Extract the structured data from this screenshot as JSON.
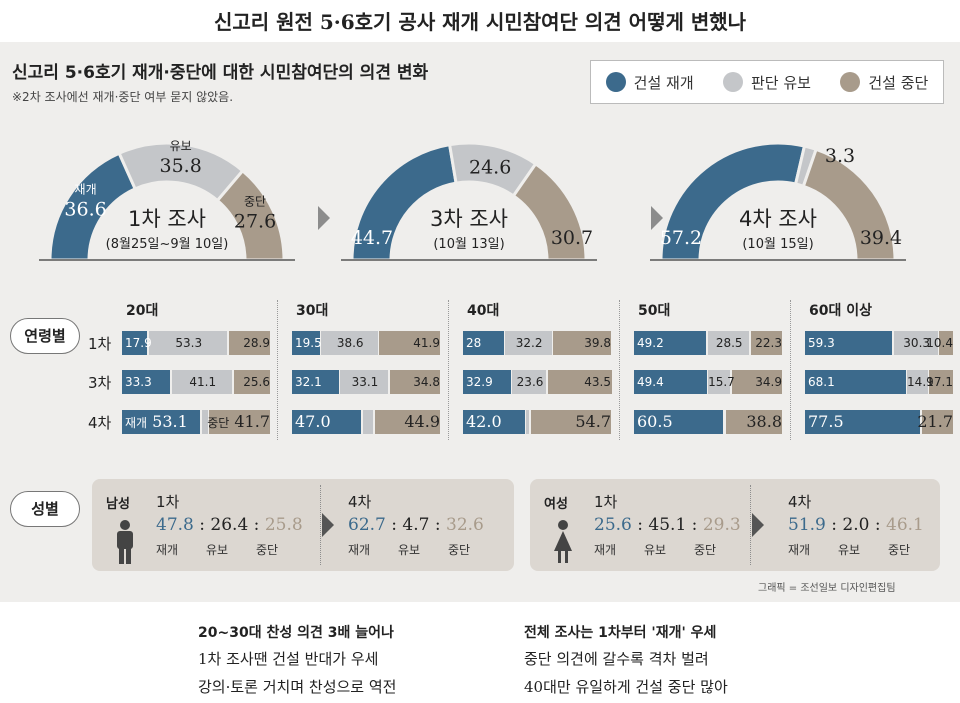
{
  "top_title": "신고리 원전 5·6호기 공사 재개  시민참여단 의견 어떻게 변했나",
  "panel_title": "신고리 5·6호기 재개·중단에 대한 시민참여단의 의견 변화",
  "panel_note": "※2차 조사에선 재개·중단 여부 묻지 않았음.",
  "colors": {
    "resume": "#3c6a8c",
    "pending": "#c4c6c9",
    "stop": "#a89b8b"
  },
  "legend": [
    "건설 재개",
    "판단 유보",
    "건설 중단"
  ],
  "section_labels": {
    "age": "연령별",
    "gender": "성별"
  },
  "chart_data": [
    {
      "type": "pie",
      "title": "1차 조사",
      "subtitle": "(8월25일~9월 10일)",
      "categories": [
        "재개",
        "유보",
        "중단"
      ],
      "values": [
        36.6,
        35.8,
        27.6
      ],
      "display": [
        "36.6",
        "35.8",
        "27.6"
      ]
    },
    {
      "type": "pie",
      "title": "3차 조사",
      "subtitle": "(10월 13일)",
      "categories": [
        "재개",
        "유보",
        "중단"
      ],
      "values": [
        44.7,
        24.6,
        30.7
      ],
      "display": [
        "44.7",
        "24.6",
        "30.7"
      ]
    },
    {
      "type": "pie",
      "title": "4차 조사",
      "subtitle": "(10월 15일)",
      "categories": [
        "재개",
        "유보",
        "중단"
      ],
      "values": [
        57.2,
        3.3,
        39.4
      ],
      "display": [
        "57.2",
        "3.3",
        "39.4"
      ]
    },
    {
      "type": "bar",
      "stacked": true,
      "horizontal": true,
      "title": "연령별",
      "groups": [
        "20대",
        "30대",
        "40대",
        "50대",
        "60대 이상"
      ],
      "rows": [
        "1차",
        "3차",
        "4차"
      ],
      "series": [
        {
          "name": "건설 재개",
          "values": [
            [
              17.9,
              33.3,
              53.1
            ],
            [
              19.5,
              32.1,
              47.0
            ],
            [
              28,
              32.9,
              42.0
            ],
            [
              49.2,
              49.4,
              60.5
            ],
            [
              59.3,
              68.1,
              77.5
            ]
          ],
          "labels": [
            [
              "17.9",
              "33.3",
              "53.1"
            ],
            [
              "19.5",
              "32.1",
              "47.0"
            ],
            [
              "28",
              "32.9",
              "42.0"
            ],
            [
              "49.2",
              "49.4",
              "60.5"
            ],
            [
              "59.3",
              "68.1",
              "77.5"
            ]
          ]
        },
        {
          "name": "판단 유보",
          "values": [
            [
              53.3,
              41.1,
              5.2
            ],
            [
              38.6,
              33.1,
              8.1
            ],
            [
              32.2,
              23.6,
              3.3
            ],
            [
              28.5,
              15.7,
              0.7
            ],
            [
              30.3,
              14.9,
              0.8
            ]
          ],
          "labels": [
            [
              "53.3",
              "41.1",
              ""
            ],
            [
              "38.6",
              "33.1",
              ""
            ],
            [
              "32.2",
              "23.6",
              ""
            ],
            [
              "28.5",
              "15.7",
              ""
            ],
            [
              "30.3",
              "14.9",
              ""
            ]
          ]
        },
        {
          "name": "건설 중단",
          "values": [
            [
              28.9,
              25.6,
              41.7
            ],
            [
              41.9,
              34.8,
              44.9
            ],
            [
              39.8,
              43.5,
              54.7
            ],
            [
              22.3,
              34.9,
              38.8
            ],
            [
              10.4,
              17.1,
              21.7
            ]
          ],
          "labels": [
            [
              "28.9",
              "25.6",
              "41.7"
            ],
            [
              "41.9",
              "34.8",
              "44.9"
            ],
            [
              "39.8",
              "43.5",
              "54.7"
            ],
            [
              "22.3",
              "34.9",
              "38.8"
            ],
            [
              "10.4",
              "17.1",
              "21.7"
            ]
          ]
        }
      ],
      "first_bar_prefix": {
        "resume": "재개",
        "stop": "중단"
      }
    }
  ],
  "gender": {
    "caps": [
      "재개",
      "유보",
      "중단"
    ],
    "groups": [
      {
        "label": "남성",
        "rounds": [
          {
            "name": "1차",
            "values": [
              "47.8",
              "26.4",
              "25.8"
            ]
          },
          {
            "name": "4차",
            "values": [
              "62.7",
              "4.7",
              "32.6"
            ]
          }
        ]
      },
      {
        "label": "여성",
        "rounds": [
          {
            "name": "1차",
            "values": [
              "25.6",
              "45.1",
              "29.3"
            ]
          },
          {
            "name": "4차",
            "values": [
              "51.9",
              "2.0",
              "46.1"
            ]
          }
        ]
      }
    ]
  },
  "credit": "그래픽 = 조선일보 디자인편집팀",
  "bottom": {
    "left": {
      "headline": "20~30대 찬성 의견 3배 늘어나",
      "lines": [
        "1차 조사땐 건설 반대가 우세",
        "강의·토론 거치며 찬성으로 역전"
      ]
    },
    "right": {
      "headline": "전체 조사는 1차부터 '재개' 우세",
      "lines": [
        "중단 의견에 갈수록 격차 벌려",
        "40대만 유일하게 건설 중단 많아"
      ]
    }
  }
}
